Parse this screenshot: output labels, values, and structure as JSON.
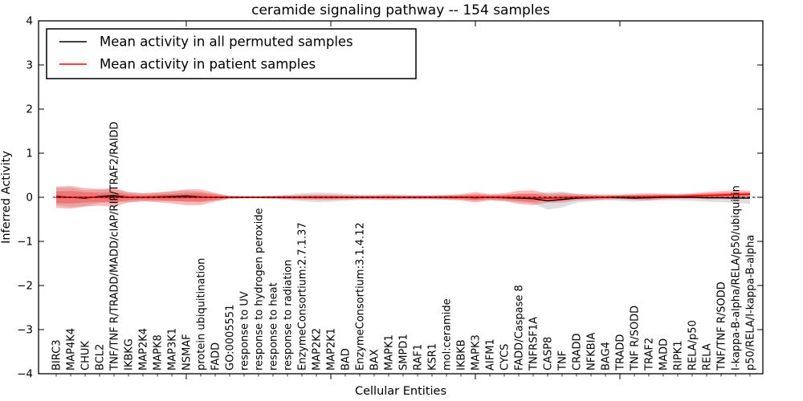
{
  "figure": {
    "title": "ceramide signaling pathway -- 154 samples",
    "xlabel": "Cellular Entities",
    "ylabel": "Inferred Activity"
  },
  "chart_data": {
    "type": "line",
    "title": "ceramide signaling pathway -- 154 samples",
    "xlabel": "Cellular Entities",
    "ylabel": "Inferred Activity",
    "ylim": [
      -4,
      4
    ],
    "yticks": [
      4,
      3,
      2,
      1,
      0,
      -1,
      -2,
      -3,
      -4
    ],
    "xticks": [
      10,
      20,
      30,
      40
    ],
    "grid": false,
    "legend_position": "upper left",
    "zero_line": {
      "y": 0,
      "style": "dashed",
      "color": "#000000"
    },
    "categories": [
      "BIRC3",
      "MAP4K4",
      "CHUK",
      "BCL2",
      "TNF/TNF R/TRADD/MADD/cIAP/RIP/TRAF2/RAIDD",
      "IKBKG",
      "MAP2K4",
      "MAPK8",
      "MAP3K1",
      "NSMAF",
      "protein ubiquitination",
      "FADD",
      "GO:0005551",
      "response to UV",
      "response to hydrogen peroxide",
      "response to heat",
      "response to radiation",
      "EnzymeConsortium:2.7.1.37",
      "MAP2K2",
      "MAP2K1",
      "BAD",
      "EnzymeConsortium:3.1.4.12",
      "BAX",
      "MAPK1",
      "SMPD1",
      "RAF1",
      "KSR1",
      "mol:ceramide",
      "IKBKB",
      "MAPK3",
      "AIFM1",
      "CYCS",
      "FADD/Caspase 8",
      "TNFRSF1A",
      "CASP8",
      "TNF",
      "CRADD",
      "NFKBIA",
      "BAG4",
      "TRADD",
      "TNF R/SODD",
      "TRAF2",
      "MADD",
      "RIPK1",
      "RELA/p50",
      "RELA",
      "TNF/TNF R/SODD",
      "I-kappa-B-alpha/RELA/p50/ubiquitin",
      "p50/RELA/I-kappa-B-alpha"
    ],
    "series": [
      {
        "name": "Mean activity in all permuted samples",
        "color": "#000000",
        "band_color": "#999999",
        "values": [
          0.02,
          0.0,
          -0.02,
          0.02,
          0.04,
          0.0,
          0.0,
          0.01,
          0.02,
          0.03,
          0.01,
          0.0,
          0.0,
          0.0,
          0.0,
          0.0,
          0.0,
          0.0,
          0.0,
          0.0,
          0.0,
          0.0,
          0.0,
          0.0,
          0.0,
          0.0,
          0.0,
          0.0,
          0.0,
          -0.01,
          0.0,
          -0.01,
          -0.02,
          -0.03,
          -0.08,
          -0.05,
          -0.02,
          -0.01,
          0.0,
          -0.01,
          -0.02,
          -0.01,
          0.0,
          0.0,
          0.0,
          -0.01,
          -0.01,
          -0.02,
          -0.02
        ],
        "band_halfwidth": [
          0.2,
          0.22,
          0.18,
          0.15,
          0.14,
          0.11,
          0.09,
          0.1,
          0.11,
          0.12,
          0.12,
          0.08,
          0.04,
          0.03,
          0.03,
          0.04,
          0.06,
          0.09,
          0.11,
          0.1,
          0.08,
          0.06,
          0.06,
          0.07,
          0.06,
          0.05,
          0.05,
          0.06,
          0.06,
          0.07,
          0.06,
          0.07,
          0.09,
          0.11,
          0.2,
          0.18,
          0.1,
          0.08,
          0.07,
          0.07,
          0.08,
          0.07,
          0.07,
          0.07,
          0.08,
          0.09,
          0.1,
          0.11,
          0.13
        ]
      },
      {
        "name": "Mean activity in patient samples",
        "color": "#ff0000",
        "band_color": "#ff0000",
        "values": [
          0,
          0,
          0,
          0,
          0,
          0,
          0,
          0,
          0,
          0,
          0,
          0,
          0,
          0,
          0,
          0,
          0,
          0,
          0,
          0,
          0,
          0,
          0,
          0,
          0,
          0,
          0,
          0,
          0,
          0,
          0,
          0,
          0,
          -0.01,
          -0.02,
          -0.01,
          0,
          0,
          0,
          0.01,
          0.01,
          0.01,
          0.02,
          0.02,
          0.03,
          0.04,
          0.05,
          0.06,
          0.07
        ],
        "band_halfwidth": [
          0.24,
          0.26,
          0.21,
          0.19,
          0.21,
          0.12,
          0.09,
          0.11,
          0.14,
          0.18,
          0.18,
          0.1,
          0.03,
          0.02,
          0.02,
          0.03,
          0.04,
          0.05,
          0.06,
          0.06,
          0.05,
          0.04,
          0.04,
          0.05,
          0.04,
          0.04,
          0.04,
          0.05,
          0.07,
          0.12,
          0.07,
          0.09,
          0.15,
          0.17,
          0.1,
          0.11,
          0.07,
          0.06,
          0.05,
          0.05,
          0.07,
          0.08,
          0.06,
          0.05,
          0.06,
          0.08,
          0.09,
          0.1,
          0.08
        ]
      }
    ]
  }
}
